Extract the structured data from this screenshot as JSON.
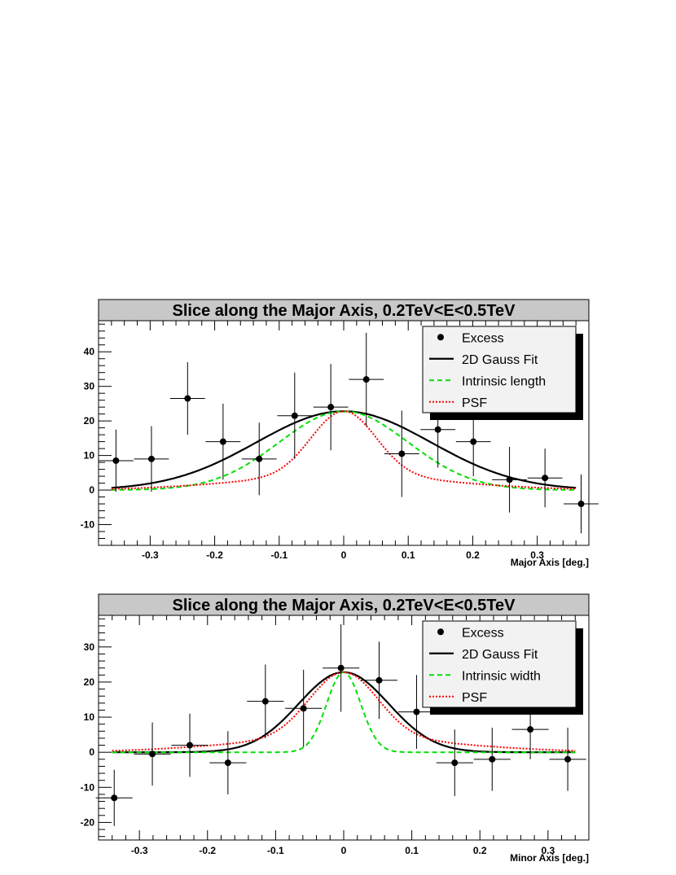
{
  "chart_data": [
    {
      "type": "scatter",
      "title": "Slice along the Major Axis, 0.2TeV<E<0.5TeV",
      "xlabel": "Major Axis [deg.]",
      "ylabel": "",
      "xlim": [
        -0.38,
        0.38
      ],
      "ylim": [
        -16,
        49
      ],
      "xticks": [
        -0.3,
        -0.2,
        -0.1,
        0,
        0.1,
        0.2,
        0.3
      ],
      "xtick_labels": [
        "-0.3",
        "-0.2",
        "-0.1",
        "0",
        "0.1",
        "0.2",
        "0.3"
      ],
      "yticks": [
        -10,
        0,
        10,
        20,
        30,
        40
      ],
      "ytick_labels": [
        "-10",
        "0",
        "10",
        "20",
        "30",
        "40"
      ],
      "legend_position": "top-right",
      "legend": [
        "Excess",
        "2D Gauss Fit",
        "Intrinsic length",
        "PSF"
      ],
      "points": [
        {
          "x": -0.353,
          "y": 8.5,
          "xerr": 0.027,
          "yerr": 9.0
        },
        {
          "x": -0.298,
          "y": 9.0,
          "xerr": 0.027,
          "yerr": 9.5
        },
        {
          "x": -0.242,
          "y": 26.5,
          "xerr": 0.027,
          "yerr": 10.5
        },
        {
          "x": -0.187,
          "y": 14.0,
          "xerr": 0.027,
          "yerr": 11.0
        },
        {
          "x": -0.131,
          "y": 9.0,
          "xerr": 0.027,
          "yerr": 10.5
        },
        {
          "x": -0.076,
          "y": 21.5,
          "xerr": 0.027,
          "yerr": 12.5
        },
        {
          "x": -0.02,
          "y": 24.0,
          "xerr": 0.027,
          "yerr": 12.5
        },
        {
          "x": 0.035,
          "y": 32.0,
          "xerr": 0.027,
          "yerr": 13.5
        },
        {
          "x": 0.09,
          "y": 10.5,
          "xerr": 0.027,
          "yerr": 12.5
        },
        {
          "x": 0.146,
          "y": 17.5,
          "xerr": 0.027,
          "yerr": 11.0
        },
        {
          "x": 0.201,
          "y": 14.0,
          "xerr": 0.027,
          "yerr": 10.0
        },
        {
          "x": 0.257,
          "y": 3.0,
          "xerr": 0.027,
          "yerr": 9.5
        },
        {
          "x": 0.312,
          "y": 3.5,
          "xerr": 0.027,
          "yerr": 8.5
        },
        {
          "x": 0.368,
          "y": -4.0,
          "xerr": 0.027,
          "yerr": 8.5
        }
      ],
      "curves": [
        {
          "name": "2D Gauss Fit",
          "amplitude": 22.8,
          "center": 0.0,
          "sigma": 0.135,
          "color": "#000000",
          "style": "solid"
        },
        {
          "name": "Intrinsic length",
          "amplitude": 22.8,
          "center": 0.0,
          "sigma": 0.1,
          "color": "#00e000",
          "style": "dashed"
        },
        {
          "name": "PSF",
          "amplitude": 22.8,
          "center": 0.0,
          "sigma": 0.05,
          "tail": true,
          "color": "#ff0000",
          "style": "dotted"
        }
      ]
    },
    {
      "type": "scatter",
      "title": "Slice along the Major Axis, 0.2TeV<E<0.5TeV",
      "xlabel": "Minor Axis [deg.]",
      "ylabel": "",
      "xlim": [
        -0.36,
        0.36
      ],
      "ylim": [
        -25,
        39
      ],
      "xticks": [
        -0.3,
        -0.2,
        -0.1,
        0,
        0.1,
        0.2,
        0.3
      ],
      "xtick_labels": [
        "-0.3",
        "-0.2",
        "-0.1",
        "0",
        "0.1",
        "0.2",
        "0.3"
      ],
      "yticks": [
        -20,
        -10,
        0,
        10,
        20,
        30
      ],
      "ytick_labels": [
        "-20",
        "-10",
        "0",
        "10",
        "20",
        "30"
      ],
      "legend_position": "top-right",
      "legend": [
        "Excess",
        "2D Gauss Fit",
        "Intrinsic width",
        "PSF"
      ],
      "points": [
        {
          "x": -0.337,
          "y": -13.0,
          "xerr": 0.027,
          "yerr": 8.0
        },
        {
          "x": -0.281,
          "y": -0.5,
          "xerr": 0.027,
          "yerr": 9.0
        },
        {
          "x": -0.226,
          "y": 2.0,
          "xerr": 0.027,
          "yerr": 9.0
        },
        {
          "x": -0.17,
          "y": -3.0,
          "xerr": 0.027,
          "yerr": 9.0
        },
        {
          "x": -0.115,
          "y": 14.5,
          "xerr": 0.027,
          "yerr": 10.5
        },
        {
          "x": -0.059,
          "y": 12.5,
          "xerr": 0.027,
          "yerr": 11.0
        },
        {
          "x": -0.004,
          "y": 24.0,
          "xerr": 0.027,
          "yerr": 12.5
        },
        {
          "x": 0.052,
          "y": 20.5,
          "xerr": 0.027,
          "yerr": 11.0
        },
        {
          "x": 0.107,
          "y": 11.5,
          "xerr": 0.027,
          "yerr": 10.5
        },
        {
          "x": 0.163,
          "y": -3.0,
          "xerr": 0.027,
          "yerr": 9.5
        },
        {
          "x": 0.218,
          "y": -2.0,
          "xerr": 0.027,
          "yerr": 9.0
        },
        {
          "x": 0.274,
          "y": 6.5,
          "xerr": 0.027,
          "yerr": 8.5
        },
        {
          "x": 0.329,
          "y": -2.0,
          "xerr": 0.027,
          "yerr": 9.0
        }
      ],
      "curves": [
        {
          "name": "2D Gauss Fit",
          "amplitude": 22.8,
          "center": 0.0,
          "sigma": 0.066,
          "color": "#000000",
          "style": "solid"
        },
        {
          "name": "Intrinsic width",
          "amplitude": 22.8,
          "center": 0.0,
          "sigma": 0.025,
          "color": "#00e000",
          "style": "dashed"
        },
        {
          "name": "PSF",
          "amplitude": 22.8,
          "center": 0.0,
          "sigma": 0.05,
          "tail": true,
          "color": "#ff0000",
          "style": "dotted"
        }
      ]
    }
  ]
}
